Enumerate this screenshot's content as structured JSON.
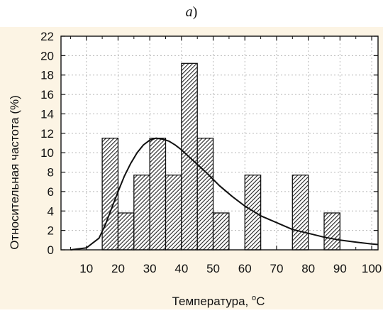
{
  "caption": {
    "letter": "a",
    "paren": ")"
  },
  "colors": {
    "panel_background": "#fcf4e4",
    "plot_background": "#ffffff",
    "grid": "#b8b8b8",
    "bars": "#222222",
    "curve": "#111111"
  },
  "chart_data": {
    "type": "bar",
    "title": "",
    "xlabel": "Температура, ",
    "xlabel_unit": "С",
    "xlabel_superscript": "o",
    "ylabel": "Относительная частота (%)",
    "xlim": [
      2,
      102
    ],
    "ylim": [
      0,
      22
    ],
    "xticks": [
      10,
      20,
      30,
      40,
      50,
      60,
      70,
      80,
      90,
      100
    ],
    "yticks": [
      0,
      2,
      4,
      6,
      8,
      10,
      12,
      14,
      16,
      18,
      20,
      22
    ],
    "grid": true,
    "legend": "none",
    "bar_width": 5,
    "bars": [
      {
        "x": 17.5,
        "value": 11.5
      },
      {
        "x": 22.5,
        "value": 3.8
      },
      {
        "x": 27.5,
        "value": 7.7
      },
      {
        "x": 32.5,
        "value": 11.5
      },
      {
        "x": 37.5,
        "value": 7.7
      },
      {
        "x": 42.5,
        "value": 19.2
      },
      {
        "x": 47.5,
        "value": 11.5
      },
      {
        "x": 52.5,
        "value": 3.8
      },
      {
        "x": 62.5,
        "value": 7.7
      },
      {
        "x": 77.5,
        "value": 7.7
      },
      {
        "x": 87.5,
        "value": 3.8
      }
    ],
    "fitted_curve": {
      "x": [
        5,
        10,
        14,
        16,
        18,
        20,
        22,
        24,
        26,
        28,
        30,
        32,
        34,
        36,
        38,
        40,
        44,
        48,
        52,
        56,
        60,
        65,
        70,
        75,
        80,
        85,
        90,
        95,
        100,
        102
      ],
      "y": [
        0,
        0.2,
        1.2,
        2.6,
        4.3,
        6.0,
        7.6,
        8.9,
        10.0,
        10.8,
        11.3,
        11.5,
        11.4,
        11.2,
        10.8,
        10.3,
        9.1,
        7.9,
        6.6,
        5.5,
        4.5,
        3.5,
        2.8,
        2.1,
        1.7,
        1.3,
        1.0,
        0.8,
        0.6,
        0.55
      ]
    }
  }
}
